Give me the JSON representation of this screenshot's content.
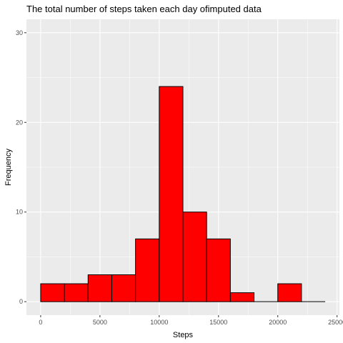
{
  "chart_data": {
    "type": "bar",
    "title": "The total number of steps taken each day ofimputed data",
    "xlabel": "Steps",
    "ylabel": "Frequency",
    "xlim": [
      -1200,
      25200
    ],
    "ylim": [
      -1.5,
      31.5
    ],
    "xticks": [
      0,
      5000,
      10000,
      15000,
      20000,
      25000
    ],
    "xtick_labels": [
      "0",
      "5000",
      "10000",
      "15000",
      "20000",
      "25000"
    ],
    "yticks": [
      0,
      10,
      20,
      30
    ],
    "ytick_labels": [
      "0",
      "10",
      "20",
      "30"
    ],
    "bin_width": 2000,
    "bins": [
      {
        "start": 0,
        "end": 2000,
        "count": 2
      },
      {
        "start": 2000,
        "end": 4000,
        "count": 2
      },
      {
        "start": 4000,
        "end": 6000,
        "count": 3
      },
      {
        "start": 6000,
        "end": 8000,
        "count": 3
      },
      {
        "start": 8000,
        "end": 10000,
        "count": 7
      },
      {
        "start": 10000,
        "end": 12000,
        "count": 24
      },
      {
        "start": 12000,
        "end": 14000,
        "count": 10
      },
      {
        "start": 14000,
        "end": 16000,
        "count": 7
      },
      {
        "start": 16000,
        "end": 18000,
        "count": 1
      },
      {
        "start": 18000,
        "end": 20000,
        "count": 0
      },
      {
        "start": 20000,
        "end": 22000,
        "count": 2
      },
      {
        "start": 22000,
        "end": 24000,
        "count": 0
      }
    ],
    "grid": true,
    "colors": {
      "bar_fill": "#ff0000",
      "bar_stroke": "#000000",
      "panel_background": "#ebebeb",
      "grid_major": "#ffffff"
    }
  }
}
